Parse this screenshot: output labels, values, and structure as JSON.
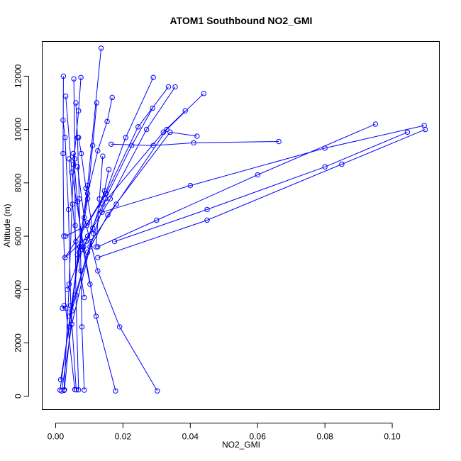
{
  "chart_data": {
    "type": "line",
    "title": "ATOM1 Southbound NO2_GMI",
    "xlabel": "NO2_GMI",
    "ylabel": "Altitude (m)",
    "xlim": [
      -0.004,
      0.114
    ],
    "ylim": [
      -500,
      13300
    ],
    "x_ticks": [
      0.0,
      0.02,
      0.04,
      0.06,
      0.08,
      0.1
    ],
    "x_tick_labels": [
      "0.00",
      "0.02",
      "0.04",
      "0.06",
      "0.08",
      "0.10"
    ],
    "y_ticks": [
      0,
      2000,
      4000,
      6000,
      8000,
      10000,
      12000
    ],
    "y_tick_labels": [
      "0",
      "2000",
      "4000",
      "6000",
      "8000",
      "10000",
      "12000"
    ],
    "grid": false,
    "marker": "open-circle",
    "series_color": "#0000ff",
    "series": [
      {
        "x": [
          0.0013,
          0.0095,
          0.0135
        ],
        "y": [
          230,
          7900,
          13050
        ]
      },
      {
        "x": [
          0.0025,
          0.004,
          0.0053,
          0.0068,
          0.0075
        ],
        "y": [
          220,
          4200,
          8700,
          10700,
          11950
        ]
      },
      {
        "x": [
          0.0026,
          0.0065,
          0.0095,
          0.0125,
          0.0153,
          0.0168
        ],
        "y": [
          240,
          5300,
          7600,
          9200,
          10300,
          11200
        ]
      },
      {
        "x": [
          0.0057,
          0.003,
          0.0024,
          0.0022,
          0.0023
        ],
        "y": [
          250,
          3300,
          6000,
          9100,
          12000
        ]
      },
      {
        "x": [
          0.0061,
          0.0045,
          0.0038,
          0.0028,
          0.0022
        ],
        "y": [
          240,
          3400,
          7000,
          9700,
          10350
        ]
      },
      {
        "x": [
          0.0068,
          0.006,
          0.0058,
          0.0057,
          0.0054
        ],
        "y": [
          240,
          3800,
          6400,
          8900,
          11900
        ]
      },
      {
        "x": [
          0.0085,
          0.0078,
          0.0075,
          0.007,
          0.0065,
          0.006
        ],
        "y": [
          230,
          2600,
          4700,
          7400,
          9700,
          11000
        ]
      },
      {
        "x": [
          0.0015,
          0.004,
          0.0072,
          0.0095,
          0.011,
          0.0122
        ],
        "y": [
          620,
          2600,
          5600,
          7400,
          9400,
          11000
        ]
      },
      {
        "x": [
          0.0018,
          0.0048,
          0.0102,
          0.0148,
          0.0226,
          0.0288
        ],
        "y": [
          200,
          2700,
          5600,
          7400,
          9400,
          10800
        ]
      },
      {
        "x": [
          0.0178,
          0.012,
          0.0083,
          0.0048,
          0.003
        ],
        "y": [
          200,
          3000,
          5600,
          8400,
          11250
        ]
      },
      {
        "x": [
          0.0302,
          0.019,
          0.0125,
          0.0085,
          0.0065
        ],
        "y": [
          200,
          2600,
          4700,
          6700,
          8600
        ]
      },
      {
        "x": [
          0.0028,
          0.0095,
          0.0148,
          0.0208,
          0.029
        ],
        "y": [
          5200,
          6500,
          7600,
          9700,
          11950
        ]
      },
      {
        "x": [
          0.003,
          0.0092,
          0.015,
          0.0245,
          0.0335
        ],
        "y": [
          6000,
          6400,
          7600,
          10100,
          11600
        ]
      },
      {
        "x": [
          0.0028,
          0.0095,
          0.0162,
          0.027,
          0.0355
        ],
        "y": [
          5200,
          6000,
          7400,
          10000,
          11600
        ]
      },
      {
        "x": [
          0.0035,
          0.009,
          0.014,
          0.032,
          0.0385
        ],
        "y": [
          4000,
          5800,
          7200,
          9900,
          10700
        ]
      },
      {
        "x": [
          0.004,
          0.0095,
          0.0155,
          0.034,
          0.042
        ],
        "y": [
          3000,
          5400,
          6800,
          9900,
          9750
        ]
      },
      {
        "x": [
          0.0048,
          0.0105,
          0.018,
          0.033,
          0.044
        ],
        "y": [
          3200,
          5800,
          7200,
          10000,
          11350
        ]
      },
      {
        "x": [
          0.0165,
          0.029,
          0.041,
          0.0663
        ],
        "y": [
          9450,
          9400,
          9500,
          9550
        ]
      },
      {
        "x": [
          0.0125,
          0.03,
          0.06,
          0.095
        ],
        "y": [
          5600,
          6600,
          8300,
          10200
        ]
      },
      {
        "x": [
          0.0175,
          0.045,
          0.08,
          0.1045
        ],
        "y": [
          5800,
          7000,
          8600,
          9900
        ]
      },
      {
        "x": [
          0.0125,
          0.045,
          0.085,
          0.1098
        ],
        "y": [
          5200,
          6600,
          8700,
          10000
        ]
      },
      {
        "x": [
          0.0138,
          0.04,
          0.08,
          0.1095
        ],
        "y": [
          6900,
          7900,
          9300,
          10150
        ]
      },
      {
        "x": [
          0.0102,
          0.008,
          0.0065,
          0.0052
        ],
        "y": [
          4200,
          5600,
          7300,
          9100
        ]
      },
      {
        "x": [
          0.0085,
          0.006,
          0.005,
          0.004
        ],
        "y": [
          3700,
          5800,
          7200,
          8900
        ]
      },
      {
        "x": [
          0.008,
          0.011,
          0.0145,
          0.0158
        ],
        "y": [
          5500,
          6300,
          7700,
          8500
        ]
      },
      {
        "x": [
          0.0112,
          0.009,
          0.0076,
          0.0068
        ],
        "y": [
          6100,
          7800,
          9100,
          9700
        ]
      },
      {
        "x": [
          0.012,
          0.013,
          0.014
        ],
        "y": [
          5600,
          7400,
          9000
        ]
      },
      {
        "x": [
          0.002,
          0.0025
        ],
        "y": [
          3300,
          3400
        ]
      }
    ]
  }
}
